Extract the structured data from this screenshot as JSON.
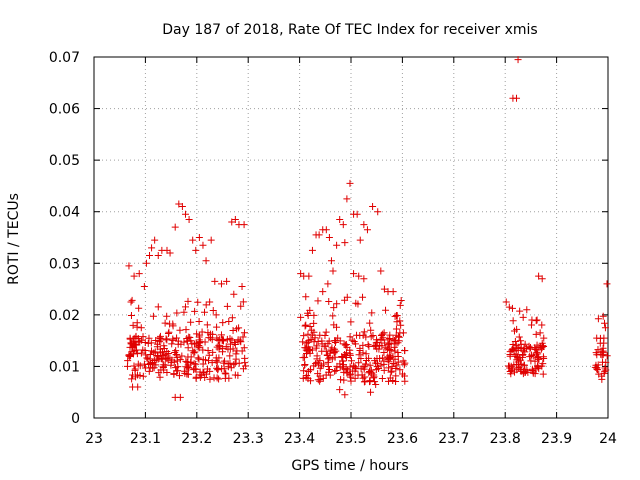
{
  "chart_data": {
    "type": "scatter",
    "title": "Day 187 of 2018, Rate Of TEC Index for receiver xmis",
    "xlabel": "GPS time / hours",
    "ylabel": "ROTI / TECUs",
    "xlim": [
      23,
      24
    ],
    "ylim": [
      0,
      0.07
    ],
    "grid": true,
    "marker": "+",
    "color": "#e00000",
    "x_ticks": [
      "23",
      "23.1",
      "23.2",
      "23.3",
      "23.4",
      "23.5",
      "23.6",
      "23.7",
      "23.8",
      "23.9",
      "24"
    ],
    "y_ticks": [
      "0",
      "0.01",
      "0.02",
      "0.03",
      "0.04",
      "0.05",
      "0.06",
      "0.07"
    ],
    "clusters": [
      {
        "x_range": [
          23.065,
          23.295
        ],
        "count": 320,
        "core": [
          0.0075,
          0.0155
        ],
        "seed": 11
      },
      {
        "x_range": [
          23.405,
          23.605
        ],
        "count": 300,
        "core": [
          0.007,
          0.016
        ],
        "seed": 23
      },
      {
        "x_range": [
          23.805,
          23.875
        ],
        "count": 110,
        "core": [
          0.0085,
          0.014
        ],
        "seed": 37
      },
      {
        "x_range": [
          23.975,
          24.0
        ],
        "count": 28,
        "core": [
          0.008,
          0.013
        ],
        "seed": 41
      }
    ],
    "series": [
      {
        "name": "ROTI",
        "points": [
          [
            23.068,
            0.0295
          ],
          [
            23.072,
            0.0225
          ],
          [
            23.078,
            0.0275
          ],
          [
            23.088,
            0.028
          ],
          [
            23.092,
            0.0175
          ],
          [
            23.098,
            0.0255
          ],
          [
            23.102,
            0.03
          ],
          [
            23.108,
            0.0315
          ],
          [
            23.112,
            0.033
          ],
          [
            23.118,
            0.0345
          ],
          [
            23.125,
            0.0315
          ],
          [
            23.132,
            0.0325
          ],
          [
            23.142,
            0.0325
          ],
          [
            23.148,
            0.032
          ],
          [
            23.158,
            0.037
          ],
          [
            23.165,
            0.0415
          ],
          [
            23.172,
            0.041
          ],
          [
            23.178,
            0.0395
          ],
          [
            23.185,
            0.0385
          ],
          [
            23.192,
            0.0345
          ],
          [
            23.198,
            0.0325
          ],
          [
            23.205,
            0.035
          ],
          [
            23.212,
            0.0335
          ],
          [
            23.218,
            0.0305
          ],
          [
            23.228,
            0.0345
          ],
          [
            23.235,
            0.0265
          ],
          [
            23.248,
            0.026
          ],
          [
            23.258,
            0.0265
          ],
          [
            23.268,
            0.038
          ],
          [
            23.275,
            0.0385
          ],
          [
            23.282,
            0.0375
          ],
          [
            23.292,
            0.0375
          ],
          [
            23.272,
            0.024
          ],
          [
            23.288,
            0.0255
          ],
          [
            23.215,
            0.0205
          ],
          [
            23.225,
            0.0225
          ],
          [
            23.175,
            0.0205
          ],
          [
            23.158,
            0.004
          ],
          [
            23.168,
            0.004
          ],
          [
            23.075,
            0.006
          ],
          [
            23.085,
            0.006
          ],
          [
            23.402,
            0.028
          ],
          [
            23.408,
            0.0275
          ],
          [
            23.412,
            0.0235
          ],
          [
            23.418,
            0.0275
          ],
          [
            23.425,
            0.0325
          ],
          [
            23.432,
            0.0355
          ],
          [
            23.438,
            0.0355
          ],
          [
            23.445,
            0.0365
          ],
          [
            23.452,
            0.0365
          ],
          [
            23.458,
            0.035
          ],
          [
            23.465,
            0.0285
          ],
          [
            23.472,
            0.0335
          ],
          [
            23.478,
            0.0385
          ],
          [
            23.485,
            0.0375
          ],
          [
            23.492,
            0.0425
          ],
          [
            23.498,
            0.0455
          ],
          [
            23.505,
            0.0395
          ],
          [
            23.512,
            0.0395
          ],
          [
            23.518,
            0.0345
          ],
          [
            23.525,
            0.0375
          ],
          [
            23.532,
            0.0365
          ],
          [
            23.542,
            0.041
          ],
          [
            23.552,
            0.04
          ],
          [
            23.558,
            0.0285
          ],
          [
            23.565,
            0.025
          ],
          [
            23.572,
            0.0245
          ],
          [
            23.582,
            0.0245
          ],
          [
            23.505,
            0.028
          ],
          [
            23.515,
            0.0275
          ],
          [
            23.525,
            0.027
          ],
          [
            23.445,
            0.0245
          ],
          [
            23.455,
            0.026
          ],
          [
            23.462,
            0.0305
          ],
          [
            23.488,
            0.034
          ],
          [
            23.402,
            0.0195
          ],
          [
            23.412,
            0.018
          ],
          [
            23.418,
            0.015
          ],
          [
            23.595,
            0.0165
          ],
          [
            23.602,
            0.0165
          ],
          [
            23.478,
            0.0055
          ],
          [
            23.488,
            0.0045
          ],
          [
            23.538,
            0.005
          ],
          [
            23.548,
            0.0065
          ],
          [
            23.802,
            0.0225
          ],
          [
            23.808,
            0.0215
          ],
          [
            23.815,
            0.062
          ],
          [
            23.822,
            0.062
          ],
          [
            23.825,
            0.0695
          ],
          [
            23.835,
            0.0195
          ],
          [
            23.842,
            0.021
          ],
          [
            23.852,
            0.019
          ],
          [
            23.862,
            0.019
          ],
          [
            23.865,
            0.0275
          ],
          [
            23.872,
            0.027
          ],
          [
            23.868,
            0.0165
          ],
          [
            23.872,
            0.0145
          ],
          [
            23.875,
            0.0155
          ],
          [
            23.978,
            0.0155
          ],
          [
            23.985,
            0.0145
          ],
          [
            23.992,
            0.0155
          ],
          [
            23.998,
            0.026
          ],
          [
            23.995,
            0.0175
          ],
          [
            23.978,
            0.0095
          ],
          [
            23.982,
            0.0085
          ],
          [
            23.988,
            0.0075
          ]
        ]
      }
    ]
  }
}
